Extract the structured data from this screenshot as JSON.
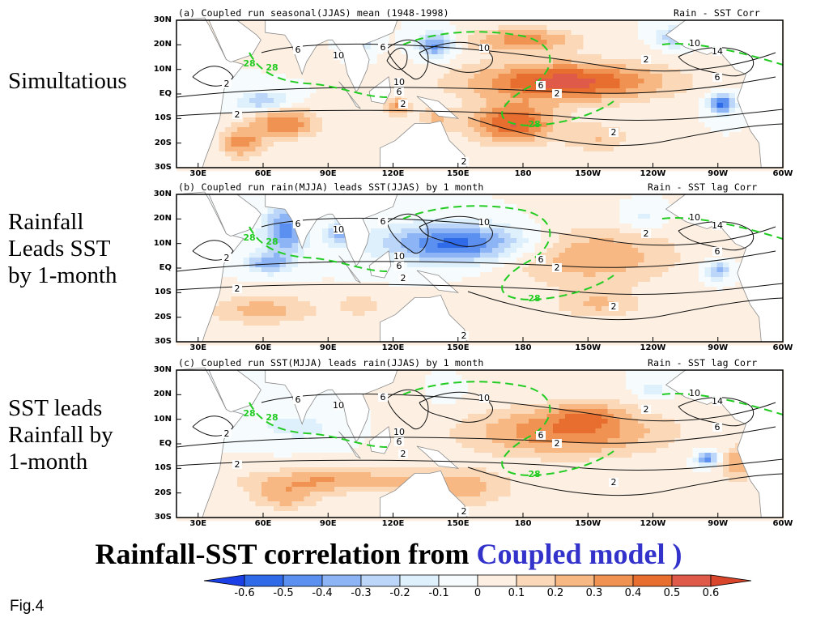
{
  "panels": [
    {
      "side_label": "Simultatious",
      "title_left": "(a) Coupled run seasonal(JJAS) mean (1948-1998)",
      "title_right": "Rain - SST Corr"
    },
    {
      "side_label": "Rainfall\nLeads SST\nby 1-month",
      "title_left": "(b) Coupled run rain(MJJA) leads SST(JJAS) by 1 month",
      "title_right": "Rain - SST lag Corr"
    },
    {
      "side_label": "SST leads\nRainfall by\n1-month",
      "title_left": "(c) Coupled run SST(MJJA) leads rain(JJAS) by 1 month",
      "title_right": "Rain - SST lag Corr"
    }
  ],
  "main_title": {
    "text": "Rainfall-SST correlation from ",
    "highlight": "Coupled model )",
    "highlight_color": "#3333cc"
  },
  "fig_label": "Fig.4",
  "chart_data": {
    "type": "heatmap",
    "panels": 3,
    "x_ticks": [
      "30E",
      "60E",
      "90E",
      "120E",
      "150E",
      "180",
      "150W",
      "120W",
      "90W",
      "60W"
    ],
    "y_ticks": [
      "30N",
      "20N",
      "10N",
      "EQ",
      "10S",
      "20S",
      "30S"
    ],
    "xlim": [
      20,
      300
    ],
    "ylim": [
      -30,
      30
    ],
    "colorbar": {
      "levels": [
        "-0.6",
        "-0.5",
        "-0.4",
        "-0.3",
        "-0.2",
        "-0.1",
        "0",
        "0.1",
        "0.2",
        "0.3",
        "0.4",
        "0.5",
        "0.6"
      ],
      "colors": [
        "#1a3fe6",
        "#2f6be8",
        "#5b8ff0",
        "#8db4f5",
        "#bcd6f9",
        "#def0fc",
        "#f6fbfd",
        "#fdf0e2",
        "#fbd9b8",
        "#f7b884",
        "#f09252",
        "#e86e30",
        "#e05a4a",
        "#d8452b"
      ]
    },
    "contour_labels": [
      "2",
      "6",
      "10",
      "14",
      "28"
    ],
    "legend": "bottom"
  }
}
